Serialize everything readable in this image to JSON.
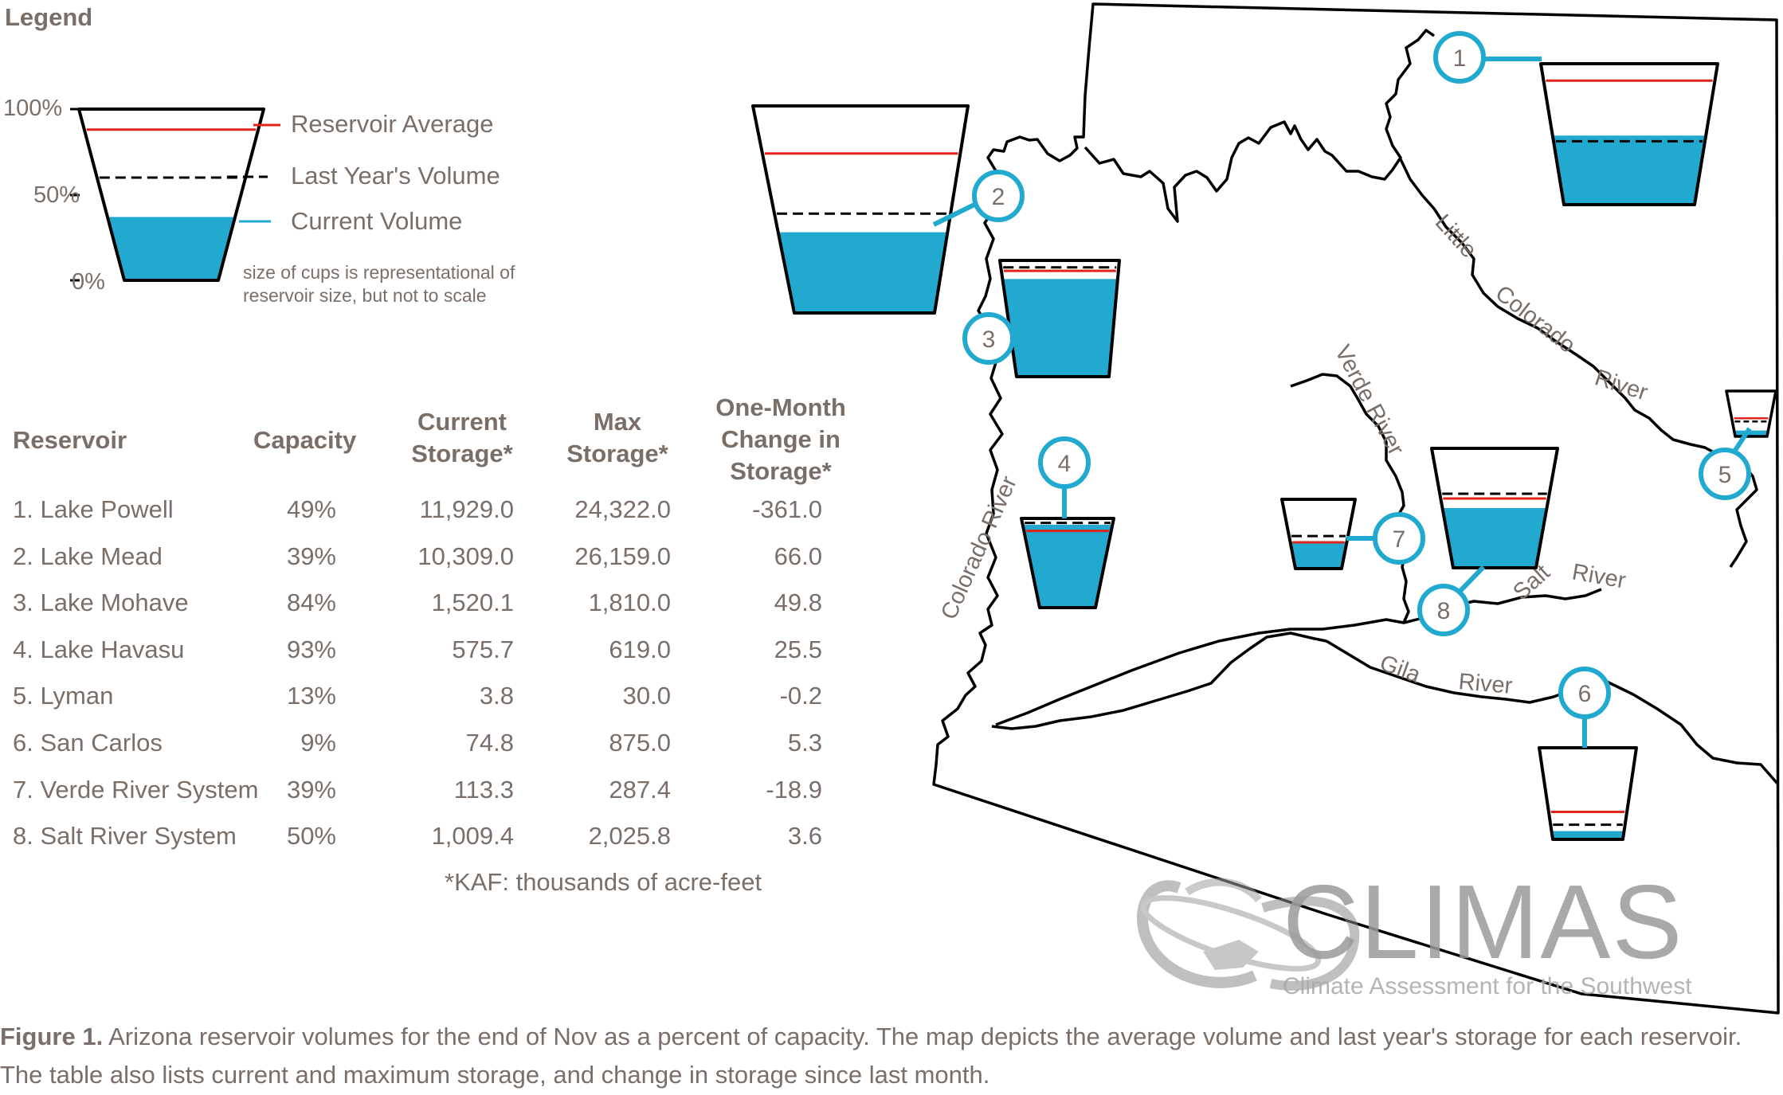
{
  "legend": {
    "title": "Legend",
    "ticks": [
      "100%",
      "50%",
      "0%"
    ],
    "items": [
      {
        "label": "Reservoir Average",
        "color": "#e2231a"
      },
      {
        "label": "Last Year's Volume",
        "color": "#000000"
      },
      {
        "label": "Current Volume",
        "color": "#22a9cf"
      }
    ],
    "note": "size of cups is representational of reservoir size, but not to scale"
  },
  "table": {
    "headers": {
      "reservoir": "Reservoir",
      "capacity": "Capacity",
      "current_1": "Current",
      "current_2": "Storage*",
      "max_1": "Max",
      "max_2": "Storage*",
      "change_1": "One-Month",
      "change_2": "Change in",
      "change_3": "Storage*"
    },
    "rows": [
      {
        "name": "1. Lake Powell",
        "capacity": "49%",
        "current": "11,929.0",
        "max": "24,322.0",
        "change": "-361.0"
      },
      {
        "name": "2. Lake Mead",
        "capacity": "39%",
        "current": "10,309.0",
        "max": "26,159.0",
        "change": "66.0"
      },
      {
        "name": "3. Lake Mohave",
        "capacity": "84%",
        "current": "1,520.1",
        "max": "1,810.0",
        "change": "49.8"
      },
      {
        "name": "4. Lake Havasu",
        "capacity": "93%",
        "current": "575.7",
        "max": "619.0",
        "change": "25.5"
      },
      {
        "name": "5. Lyman",
        "capacity": "13%",
        "current": "3.8",
        "max": "30.0",
        "change": "-0.2"
      },
      {
        "name": "6. San Carlos",
        "capacity": "9%",
        "current": "74.8",
        "max": "875.0",
        "change": "5.3"
      },
      {
        "name": "7. Verde River System",
        "capacity": "39%",
        "current": "113.3",
        "max": "287.4",
        "change": "-18.9"
      },
      {
        "name": "8. Salt River System",
        "capacity": "50%",
        "current": "1,009.4",
        "max": "2,025.8",
        "change": "3.6"
      }
    ],
    "footnote": "*KAF: thousands of acre-feet"
  },
  "map": {
    "markers": [
      {
        "id": "1",
        "current": 0.49,
        "average": 0.88,
        "last_year": 0.45
      },
      {
        "id": "2",
        "current": 0.39,
        "average": 0.77,
        "last_year": 0.48
      },
      {
        "id": "3",
        "current": 0.84,
        "average": 0.91,
        "last_year": 0.94
      },
      {
        "id": "4",
        "current": 0.93,
        "average": 0.86,
        "last_year": 0.95
      },
      {
        "id": "5",
        "current": 0.13,
        "average": 0.4,
        "last_year": 0.33
      },
      {
        "id": "6",
        "current": 0.09,
        "average": 0.3,
        "last_year": 0.16
      },
      {
        "id": "7",
        "current": 0.39,
        "average": 0.38,
        "last_year": 0.47
      },
      {
        "id": "8",
        "current": 0.5,
        "average": 0.58,
        "last_year": 0.62
      }
    ],
    "rivers": {
      "little_1": "Little",
      "little_2": "Colorado",
      "little_3": "River",
      "verde": "Verde River",
      "colorado": "Colorado River",
      "salt_1": "Salt",
      "salt_2": "River",
      "gila_1": "Gila",
      "gila_2": "River"
    }
  },
  "logo": {
    "name": "CLIMAS",
    "tagline": "Climate Assessment for the Southwest"
  },
  "caption": {
    "label": "Figure 1.",
    "text": " Arizona reservoir volumes for the end of Nov as a percent of capacity. The map depicts the average volume and last year's storage for each reservoir. The table also lists current and maximum storage, and change in storage since last month."
  },
  "colors": {
    "water": "#22a9cf",
    "average": "#e2231a",
    "text": "#7a6f68",
    "marker": "#22a9cf"
  }
}
